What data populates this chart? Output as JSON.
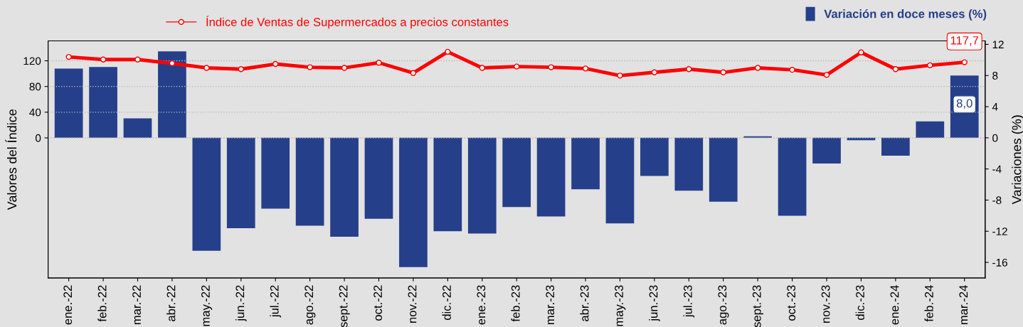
{
  "chart_data": {
    "type": "bar",
    "categories": [
      "ene.-22",
      "feb.-22",
      "mar.-22",
      "abr.-22",
      "may.-22",
      "jun.-22",
      "jul.-22",
      "ago.-22",
      "sept.-22",
      "oct.-22",
      "nov.-22",
      "dic.-22",
      "ene.-23",
      "feb.-23",
      "mar.-23",
      "abr.-23",
      "may.-23",
      "jun.-23",
      "jul.-23",
      "ago.-23",
      "sept.-23",
      "oct.-23",
      "nov.-23",
      "dic.-23",
      "ene.-24",
      "feb.-24",
      "mar.-24"
    ],
    "series": [
      {
        "name": "Variación en doce meses (%)",
        "axis": "y2",
        "color": "#253f8a",
        "values": [
          8.9,
          9.1,
          2.5,
          11.1,
          -14.5,
          -11.6,
          -9.1,
          -11.3,
          -12.7,
          -10.4,
          -16.6,
          -12.0,
          -12.3,
          -8.9,
          -10.1,
          -6.6,
          -11.0,
          -4.9,
          -6.8,
          -8.2,
          0.2,
          -10.0,
          -3.3,
          -0.3,
          -2.3,
          2.1,
          8.0
        ],
        "value_labels": [
          null,
          null,
          null,
          null,
          null,
          null,
          null,
          null,
          null,
          null,
          null,
          null,
          null,
          null,
          null,
          null,
          null,
          null,
          null,
          null,
          null,
          null,
          null,
          null,
          null,
          null,
          "8,0"
        ]
      },
      {
        "name": "Índice de Ventas de Supermercados a precios constantes",
        "type": "line",
        "color": "#ff0000",
        "marker": "circle",
        "values": [
          126,
          122,
          122,
          116,
          109,
          107,
          115,
          110,
          109,
          117,
          101,
          134,
          109,
          111,
          110,
          108,
          97,
          102,
          107,
          102,
          109,
          106,
          98,
          133,
          107,
          113,
          117.7
        ],
        "value_labels": [
          null,
          null,
          null,
          null,
          null,
          null,
          null,
          null,
          null,
          null,
          null,
          null,
          null,
          null,
          null,
          null,
          null,
          null,
          null,
          null,
          null,
          null,
          null,
          null,
          null,
          null,
          "117,7"
        ]
      }
    ],
    "ylabel": "Valores del Índice",
    "y2label": "Variaciones (%)",
    "ylim": [
      -218,
      151
    ],
    "yticks": [
      0,
      40,
      80,
      120
    ],
    "y2lim": [
      -18,
      12.45
    ],
    "y2ticks": [
      {
        "value": -16,
        "label": "-16"
      },
      {
        "value": -12,
        "label": "-12"
      },
      {
        "value": -8,
        "label": "-8"
      },
      {
        "value": -4,
        "label": "-4"
      },
      0,
      4,
      8,
      12
    ],
    "grid": "y",
    "legend": "top"
  }
}
